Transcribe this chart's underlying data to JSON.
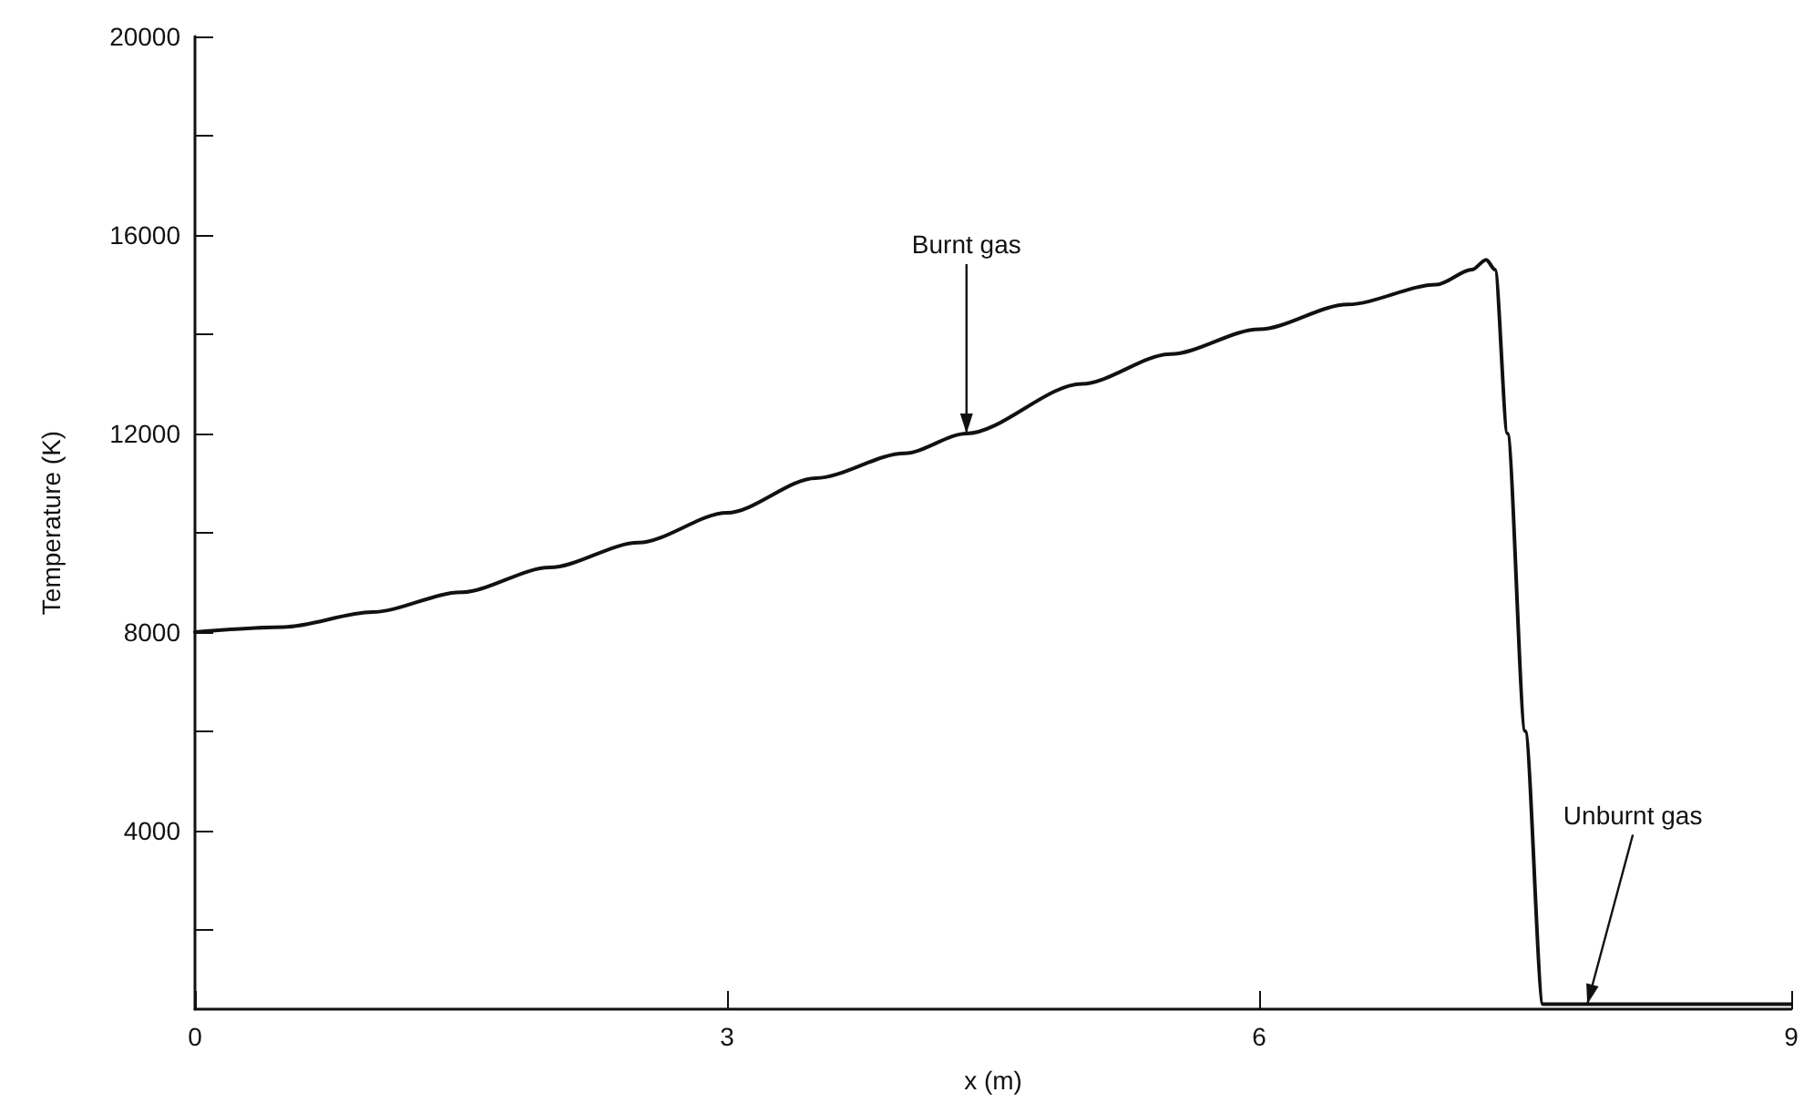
{
  "chart_data": {
    "type": "line",
    "xlabel": "x (m)",
    "ylabel": "Temperature (K)",
    "x": [
      0,
      0.5,
      1,
      1.5,
      2,
      2.5,
      3,
      3.5,
      4,
      4.35,
      5,
      5.5,
      6,
      6.5,
      7,
      7.2,
      7.28,
      7.33,
      7.4,
      7.5,
      7.6,
      8,
      8.5,
      9
    ],
    "series": [
      {
        "color": "#111111",
        "values": [
          8000,
          8100,
          8400,
          8800,
          9300,
          9800,
          10400,
          11100,
          11600,
          12000,
          13000,
          13600,
          14100,
          14600,
          15000,
          15300,
          15500,
          15300,
          12000,
          6000,
          500,
          500,
          500,
          500
        ]
      }
    ],
    "xlim": [
      0,
      9
    ],
    "xticks": [
      0,
      3,
      6,
      9
    ],
    "ylim": [
      400,
      20000
    ],
    "yticks": [
      {
        "value": 2000,
        "label": null
      },
      4000,
      {
        "value": 6000,
        "label": null
      },
      8000,
      {
        "value": 10000,
        "label": null
      },
      12000,
      {
        "value": 14000,
        "label": null
      },
      16000,
      {
        "value": 18000,
        "label": null
      },
      20000
    ],
    "grid": false,
    "marker": "none",
    "line_style": "solid",
    "annotations": [
      {
        "text": "Burnt gas",
        "x": 4.35,
        "y": 12000
      },
      {
        "text": "Unburnt gas",
        "x": 7.85,
        "y": 500
      }
    ]
  }
}
